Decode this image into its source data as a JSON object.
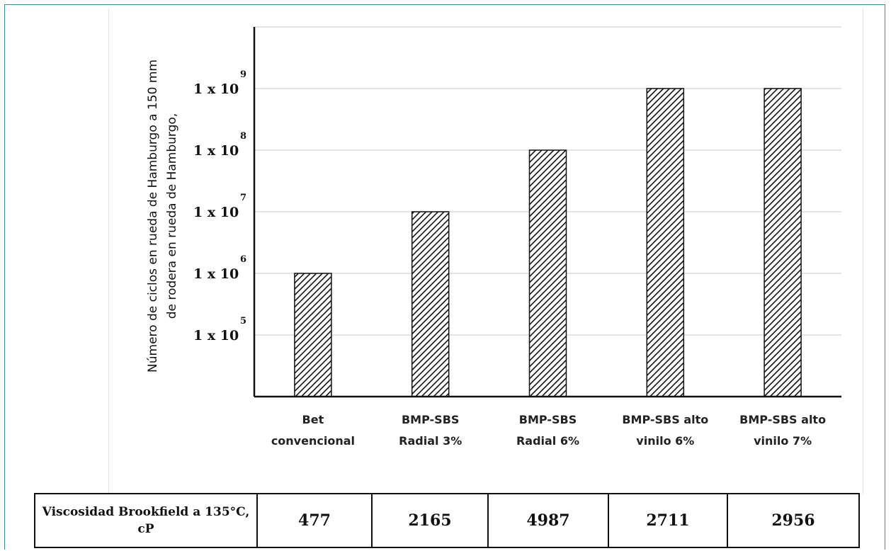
{
  "chart_data": {
    "type": "bar",
    "scale": "log",
    "grid": true,
    "ylabel_lines": [
      "Número de ciclos en rueda de Hamburgo a 150 mm",
      "de rodera en rueda de Hamburgo,"
    ],
    "ytick_labels": [
      {
        "base": "1 x 10",
        "exp": "5",
        "value": 100000
      },
      {
        "base": "1 x 10",
        "exp": "6",
        "value": 1000000
      },
      {
        "base": "1 x 10",
        "exp": "7",
        "value": 10000000
      },
      {
        "base": "1 x 10",
        "exp": "8",
        "value": 100000000
      },
      {
        "base": "1 x 10",
        "exp": "9",
        "value": 1000000000
      }
    ],
    "ylim": [
      10000,
      10000000000
    ],
    "categories": [
      [
        "Bet",
        "convencional"
      ],
      [
        "BMP-SBS",
        "Radial 3%"
      ],
      [
        "BMP-SBS",
        "Radial 6%"
      ],
      [
        "BMP-SBS alto",
        "vinilo 6%"
      ],
      [
        "BMP-SBS alto",
        "vinilo 7%"
      ]
    ],
    "values": [
      1000000,
      10000000,
      100000000,
      1000000000,
      1000000000
    ],
    "bar_fill": "hatched",
    "bar_stroke": "#111111"
  },
  "viscosity_table": {
    "label": "Viscosidad Brookfield a 135°C, cP",
    "values": [
      "477",
      "2165",
      "4987",
      "2711",
      "2956"
    ]
  },
  "colors": {
    "frame_border": "#3a8fa3",
    "grid": "#dcdcdc",
    "axis": "#111111"
  }
}
